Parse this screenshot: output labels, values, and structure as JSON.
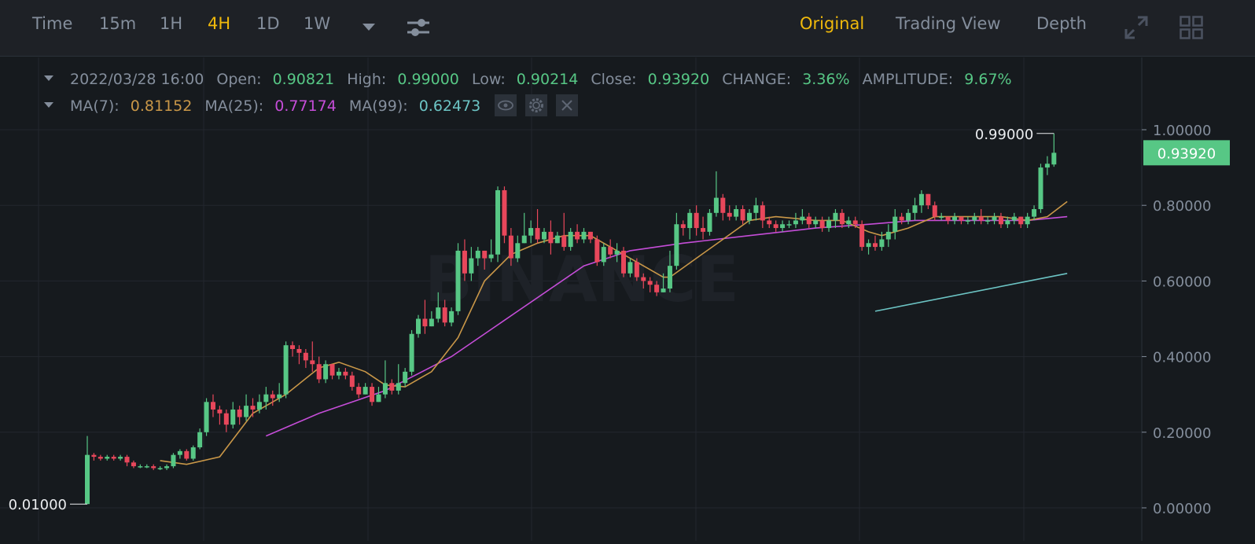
{
  "toolbar": {
    "intervals": [
      "Time",
      "15m",
      "1H",
      "4H",
      "1D",
      "1W"
    ],
    "active_interval": "4H",
    "views": [
      "Original",
      "Trading View",
      "Depth"
    ],
    "active_view": "Original",
    "icons": [
      "more-intervals-caret-icon",
      "indicator-settings-icon",
      "fullscreen-icon",
      "layout-grid-icon"
    ]
  },
  "info": {
    "datetime": "2022/03/28 16:00",
    "open_label": "Open:",
    "open": "0.90821",
    "high_label": "High:",
    "high": "0.99000",
    "low_label": "Low:",
    "low": "0.90214",
    "close_label": "Close:",
    "close": "0.93920",
    "change_label": "CHANGE:",
    "change": "3.36%",
    "amplitude_label": "AMPLITUDE:",
    "amplitude": "9.67%"
  },
  "ma_legend": {
    "ma7_label": "MA(7):",
    "ma7": "0.81152",
    "ma25_label": "MA(25):",
    "ma25": "0.77174",
    "ma99_label": "MA(99):",
    "ma99": "0.62473",
    "icons": [
      "eye-icon",
      "gear-icon",
      "close-icon"
    ]
  },
  "colors": {
    "up": "#57c785",
    "down": "#e8475b",
    "ma7": "#c99748",
    "ma25": "#c54dd8",
    "ma99": "#6cc4c4",
    "accent": "#f0b90b",
    "grid": "#23272e",
    "axis_text": "#848e9c"
  },
  "watermark": "BINANCE",
  "chart_data": {
    "type": "candlestick",
    "ylim": [
      0,
      1.0
    ],
    "y_ticks": [
      "1.00000",
      "0.80000",
      "0.60000",
      "0.40000",
      "0.20000",
      "0.00000"
    ],
    "last_price_label": "0.93920",
    "high_marker_label": "0.99000",
    "low_marker_label": "0.01000",
    "candles": [
      [
        0.01,
        0.14,
        0.01,
        0.19
      ],
      [
        0.14,
        0.135,
        0.125,
        0.145
      ],
      [
        0.135,
        0.13,
        0.125,
        0.14
      ],
      [
        0.13,
        0.135,
        0.125,
        0.14
      ],
      [
        0.135,
        0.13,
        0.125,
        0.14
      ],
      [
        0.13,
        0.135,
        0.125,
        0.14
      ],
      [
        0.135,
        0.12,
        0.11,
        0.14
      ],
      [
        0.12,
        0.11,
        0.105,
        0.125
      ],
      [
        0.11,
        0.11,
        0.105,
        0.115
      ],
      [
        0.11,
        0.11,
        0.105,
        0.115
      ],
      [
        0.11,
        0.105,
        0.1,
        0.115
      ],
      [
        0.105,
        0.105,
        0.1,
        0.11
      ],
      [
        0.105,
        0.11,
        0.1,
        0.115
      ],
      [
        0.11,
        0.14,
        0.105,
        0.145
      ],
      [
        0.14,
        0.15,
        0.13,
        0.155
      ],
      [
        0.15,
        0.13,
        0.125,
        0.155
      ],
      [
        0.13,
        0.16,
        0.125,
        0.165
      ],
      [
        0.16,
        0.2,
        0.155,
        0.21
      ],
      [
        0.2,
        0.28,
        0.19,
        0.29
      ],
      [
        0.28,
        0.26,
        0.24,
        0.3
      ],
      [
        0.26,
        0.25,
        0.22,
        0.27
      ],
      [
        0.25,
        0.22,
        0.2,
        0.26
      ],
      [
        0.22,
        0.26,
        0.21,
        0.28
      ],
      [
        0.26,
        0.24,
        0.22,
        0.27
      ],
      [
        0.24,
        0.27,
        0.23,
        0.3
      ],
      [
        0.27,
        0.26,
        0.24,
        0.29
      ],
      [
        0.26,
        0.28,
        0.25,
        0.3
      ],
      [
        0.28,
        0.3,
        0.26,
        0.32
      ],
      [
        0.3,
        0.29,
        0.27,
        0.31
      ],
      [
        0.29,
        0.3,
        0.28,
        0.33
      ],
      [
        0.3,
        0.43,
        0.29,
        0.44
      ],
      [
        0.43,
        0.42,
        0.4,
        0.44
      ],
      [
        0.42,
        0.41,
        0.38,
        0.43
      ],
      [
        0.41,
        0.39,
        0.37,
        0.42
      ],
      [
        0.39,
        0.38,
        0.36,
        0.44
      ],
      [
        0.38,
        0.34,
        0.33,
        0.4
      ],
      [
        0.34,
        0.38,
        0.33,
        0.39
      ],
      [
        0.38,
        0.35,
        0.34,
        0.38
      ],
      [
        0.35,
        0.36,
        0.34,
        0.37
      ],
      [
        0.36,
        0.35,
        0.34,
        0.37
      ],
      [
        0.35,
        0.32,
        0.31,
        0.36
      ],
      [
        0.32,
        0.3,
        0.29,
        0.33
      ],
      [
        0.3,
        0.32,
        0.3,
        0.33
      ],
      [
        0.32,
        0.28,
        0.27,
        0.33
      ],
      [
        0.28,
        0.3,
        0.28,
        0.32
      ],
      [
        0.3,
        0.33,
        0.29,
        0.39
      ],
      [
        0.33,
        0.31,
        0.3,
        0.34
      ],
      [
        0.31,
        0.33,
        0.3,
        0.38
      ],
      [
        0.33,
        0.36,
        0.32,
        0.37
      ],
      [
        0.36,
        0.46,
        0.35,
        0.47
      ],
      [
        0.46,
        0.5,
        0.45,
        0.51
      ],
      [
        0.5,
        0.48,
        0.46,
        0.55
      ],
      [
        0.48,
        0.5,
        0.48,
        0.52
      ],
      [
        0.5,
        0.53,
        0.49,
        0.57
      ],
      [
        0.53,
        0.49,
        0.48,
        0.55
      ],
      [
        0.49,
        0.52,
        0.48,
        0.53
      ],
      [
        0.52,
        0.68,
        0.51,
        0.7
      ],
      [
        0.68,
        0.62,
        0.6,
        0.71
      ],
      [
        0.62,
        0.66,
        0.6,
        0.69
      ],
      [
        0.66,
        0.68,
        0.64,
        0.69
      ],
      [
        0.68,
        0.66,
        0.63,
        0.68
      ],
      [
        0.66,
        0.67,
        0.65,
        0.71
      ],
      [
        0.67,
        0.84,
        0.65,
        0.85
      ],
      [
        0.84,
        0.72,
        0.7,
        0.85
      ],
      [
        0.72,
        0.66,
        0.64,
        0.74
      ],
      [
        0.66,
        0.7,
        0.65,
        0.72
      ],
      [
        0.7,
        0.72,
        0.7,
        0.78
      ],
      [
        0.72,
        0.74,
        0.7,
        0.76
      ],
      [
        0.74,
        0.71,
        0.7,
        0.79
      ],
      [
        0.71,
        0.73,
        0.7,
        0.74
      ],
      [
        0.73,
        0.7,
        0.67,
        0.76
      ],
      [
        0.7,
        0.72,
        0.7,
        0.73
      ],
      [
        0.72,
        0.69,
        0.68,
        0.78
      ],
      [
        0.69,
        0.73,
        0.68,
        0.74
      ],
      [
        0.73,
        0.71,
        0.7,
        0.75
      ],
      [
        0.71,
        0.73,
        0.7,
        0.74
      ],
      [
        0.73,
        0.71,
        0.7,
        0.73
      ],
      [
        0.71,
        0.65,
        0.64,
        0.72
      ],
      [
        0.65,
        0.69,
        0.64,
        0.7
      ],
      [
        0.69,
        0.67,
        0.66,
        0.71
      ],
      [
        0.67,
        0.68,
        0.65,
        0.7
      ],
      [
        0.68,
        0.62,
        0.61,
        0.69
      ],
      [
        0.62,
        0.65,
        0.61,
        0.66
      ],
      [
        0.65,
        0.61,
        0.6,
        0.66
      ],
      [
        0.61,
        0.6,
        0.58,
        0.62
      ],
      [
        0.6,
        0.59,
        0.57,
        0.61
      ],
      [
        0.59,
        0.57,
        0.56,
        0.6
      ],
      [
        0.57,
        0.58,
        0.57,
        0.62
      ],
      [
        0.58,
        0.64,
        0.57,
        0.68
      ],
      [
        0.64,
        0.75,
        0.63,
        0.78
      ],
      [
        0.75,
        0.74,
        0.72,
        0.76
      ],
      [
        0.74,
        0.78,
        0.71,
        0.79
      ],
      [
        0.78,
        0.74,
        0.72,
        0.8
      ],
      [
        0.74,
        0.73,
        0.71,
        0.77
      ],
      [
        0.73,
        0.78,
        0.72,
        0.79
      ],
      [
        0.78,
        0.82,
        0.77,
        0.89
      ],
      [
        0.82,
        0.78,
        0.76,
        0.83
      ],
      [
        0.78,
        0.77,
        0.76,
        0.8
      ],
      [
        0.77,
        0.79,
        0.76,
        0.8
      ],
      [
        0.79,
        0.76,
        0.75,
        0.8
      ],
      [
        0.76,
        0.78,
        0.75,
        0.79
      ],
      [
        0.78,
        0.8,
        0.76,
        0.82
      ],
      [
        0.8,
        0.76,
        0.74,
        0.81
      ],
      [
        0.76,
        0.75,
        0.74,
        0.77
      ],
      [
        0.75,
        0.74,
        0.73,
        0.76
      ],
      [
        0.74,
        0.75,
        0.73,
        0.76
      ],
      [
        0.75,
        0.75,
        0.74,
        0.76
      ],
      [
        0.75,
        0.76,
        0.74,
        0.78
      ],
      [
        0.76,
        0.77,
        0.75,
        0.79
      ],
      [
        0.77,
        0.75,
        0.74,
        0.78
      ],
      [
        0.75,
        0.76,
        0.74,
        0.77
      ],
      [
        0.76,
        0.74,
        0.73,
        0.77
      ],
      [
        0.74,
        0.76,
        0.73,
        0.77
      ],
      [
        0.76,
        0.78,
        0.74,
        0.79
      ],
      [
        0.78,
        0.75,
        0.74,
        0.79
      ],
      [
        0.75,
        0.76,
        0.74,
        0.77
      ],
      [
        0.76,
        0.75,
        0.74,
        0.77
      ],
      [
        0.75,
        0.69,
        0.68,
        0.76
      ],
      [
        0.69,
        0.7,
        0.67,
        0.71
      ],
      [
        0.7,
        0.69,
        0.68,
        0.72
      ],
      [
        0.69,
        0.71,
        0.68,
        0.73
      ],
      [
        0.71,
        0.73,
        0.69,
        0.75
      ],
      [
        0.73,
        0.77,
        0.71,
        0.79
      ],
      [
        0.77,
        0.76,
        0.75,
        0.78
      ],
      [
        0.76,
        0.78,
        0.75,
        0.79
      ],
      [
        0.78,
        0.8,
        0.76,
        0.82
      ],
      [
        0.8,
        0.83,
        0.78,
        0.84
      ],
      [
        0.83,
        0.8,
        0.79,
        0.83
      ],
      [
        0.8,
        0.77,
        0.76,
        0.81
      ],
      [
        0.77,
        0.77,
        0.76,
        0.78
      ],
      [
        0.77,
        0.76,
        0.75,
        0.77
      ],
      [
        0.76,
        0.77,
        0.75,
        0.78
      ],
      [
        0.77,
        0.76,
        0.75,
        0.77
      ],
      [
        0.76,
        0.76,
        0.75,
        0.77
      ],
      [
        0.76,
        0.77,
        0.75,
        0.78
      ],
      [
        0.77,
        0.76,
        0.75,
        0.79
      ],
      [
        0.76,
        0.76,
        0.75,
        0.77
      ],
      [
        0.76,
        0.77,
        0.75,
        0.78
      ],
      [
        0.77,
        0.75,
        0.74,
        0.78
      ],
      [
        0.75,
        0.76,
        0.74,
        0.77
      ],
      [
        0.76,
        0.77,
        0.75,
        0.78
      ],
      [
        0.77,
        0.75,
        0.74,
        0.77
      ],
      [
        0.75,
        0.77,
        0.74,
        0.78
      ],
      [
        0.77,
        0.79,
        0.76,
        0.8
      ],
      [
        0.79,
        0.9,
        0.78,
        0.91
      ],
      [
        0.9,
        0.91,
        0.88,
        0.93
      ],
      [
        0.908,
        0.939,
        0.902,
        0.99
      ]
    ],
    "ma7": [
      [
        11,
        0.125
      ],
      [
        15,
        0.115
      ],
      [
        20,
        0.135
      ],
      [
        25,
        0.25
      ],
      [
        30,
        0.3
      ],
      [
        35,
        0.37
      ],
      [
        38,
        0.385
      ],
      [
        42,
        0.36
      ],
      [
        45,
        0.325
      ],
      [
        48,
        0.32
      ],
      [
        52,
        0.36
      ],
      [
        56,
        0.45
      ],
      [
        60,
        0.6
      ],
      [
        64,
        0.67
      ],
      [
        68,
        0.7
      ],
      [
        72,
        0.72
      ],
      [
        76,
        0.72
      ],
      [
        80,
        0.68
      ],
      [
        84,
        0.64
      ],
      [
        87,
        0.61
      ],
      [
        88,
        0.61
      ],
      [
        92,
        0.66
      ],
      [
        96,
        0.71
      ],
      [
        100,
        0.76
      ],
      [
        104,
        0.77
      ],
      [
        110,
        0.76
      ],
      [
        114,
        0.76
      ],
      [
        118,
        0.73
      ],
      [
        120,
        0.72
      ],
      [
        124,
        0.74
      ],
      [
        128,
        0.77
      ],
      [
        133,
        0.77
      ],
      [
        138,
        0.77
      ],
      [
        142,
        0.76
      ],
      [
        145,
        0.77
      ],
      [
        148,
        0.81
      ]
    ],
    "ma25": [
      [
        27,
        0.19
      ],
      [
        35,
        0.25
      ],
      [
        45,
        0.31
      ],
      [
        55,
        0.4
      ],
      [
        65,
        0.52
      ],
      [
        75,
        0.64
      ],
      [
        82,
        0.68
      ],
      [
        90,
        0.7
      ],
      [
        100,
        0.72
      ],
      [
        110,
        0.74
      ],
      [
        118,
        0.75
      ],
      [
        125,
        0.76
      ],
      [
        135,
        0.76
      ],
      [
        142,
        0.76
      ],
      [
        148,
        0.77
      ]
    ],
    "ma99": [
      [
        119,
        0.52
      ],
      [
        148,
        0.62
      ]
    ]
  }
}
